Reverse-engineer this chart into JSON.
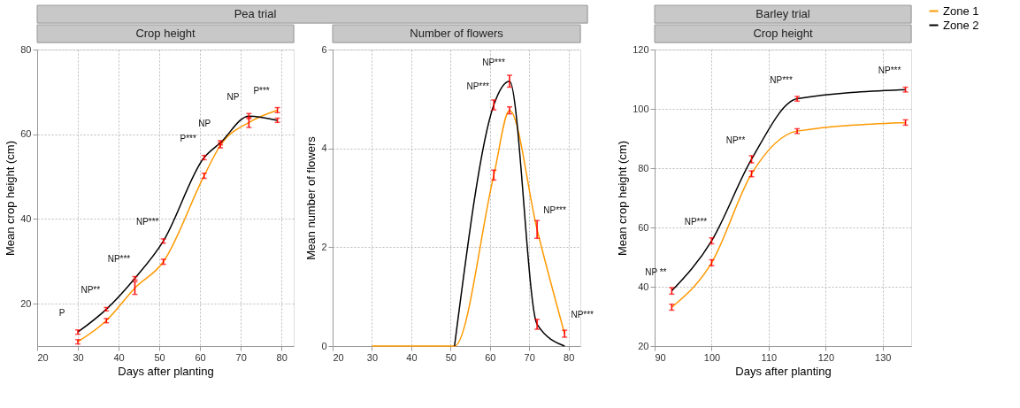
{
  "chart_data": [
    {
      "type": "line",
      "title": "Pea trial",
      "subtitle": "Crop height",
      "xlabel": "Days after planting",
      "ylabel": "Mean crop height (cm)",
      "xlim": [
        20,
        83
      ],
      "ylim": [
        10,
        80
      ],
      "xticks": [
        20,
        30,
        40,
        50,
        60,
        70,
        80
      ],
      "yticks": [
        20,
        40,
        60,
        80
      ],
      "grid": true,
      "line_style": "solid",
      "series": [
        {
          "color": "#ff9900",
          "x": [
            30,
            37,
            44,
            51,
            61,
            65,
            72,
            79
          ],
          "values": [
            11.0,
            16.0,
            23.7,
            29.9,
            50.2,
            57.4,
            62.8,
            65.7
          ],
          "errors": [
            0.5,
            0.5,
            1.5,
            0.6,
            0.6,
            0.6,
            1.2,
            0.6
          ]
        },
        {
          "color": "#000000",
          "x": [
            30,
            37,
            44,
            51,
            61,
            65,
            72,
            79
          ],
          "values": [
            13.3,
            18.7,
            26.0,
            34.8,
            54.5,
            58.0,
            64.3,
            63.3
          ],
          "errors": [
            0.5,
            0.4,
            0.4,
            0.5,
            0.5,
            0.5,
            0.6,
            0.5
          ]
        }
      ],
      "annotations": [
        "P",
        "NP**",
        "NP***",
        "NP***",
        "P***",
        "NP",
        "NP",
        "P***"
      ]
    },
    {
      "type": "line",
      "subtitle": "Number of flowers",
      "ylabel": "Mean number of flowers",
      "xlim": [
        20,
        83
      ],
      "ylim": [
        0,
        6
      ],
      "xticks": [
        20,
        30,
        40,
        50,
        60,
        70,
        80
      ],
      "yticks": [
        0,
        2,
        4,
        6
      ],
      "grid": true,
      "line_style": "solid",
      "series": [
        {
          "color": "#ff9900",
          "x": [
            30,
            37,
            44,
            51,
            61,
            65,
            72,
            79
          ],
          "values": [
            0,
            0,
            0,
            0,
            3.46,
            4.77,
            2.36,
            0.25
          ],
          "errors": [
            null,
            null,
            null,
            null,
            0.1,
            0.07,
            0.18,
            0.07
          ]
        },
        {
          "color": "#000000",
          "x": [
            51,
            61,
            65,
            72,
            79
          ],
          "values": [
            0,
            4.88,
            5.36,
            0.44,
            0
          ],
          "errors": [
            null,
            0.1,
            0.12,
            0.1,
            null
          ]
        }
      ],
      "annotations": [
        "NP***",
        "NP***",
        "NP***",
        "NP***"
      ]
    },
    {
      "type": "line",
      "title": "Barley trial",
      "subtitle": "Crop height",
      "xlabel": "Days after planting",
      "ylabel": "Mean crop height (cm)",
      "xlim": [
        90,
        135
      ],
      "ylim": [
        20,
        120
      ],
      "xticks": [
        90,
        100,
        110,
        120,
        130
      ],
      "yticks": [
        20,
        40,
        60,
        80,
        100,
        120
      ],
      "grid": true,
      "line_style": "solid",
      "legend": "right",
      "series": [
        {
          "name": "Zone 1",
          "color": "#ff9900",
          "x": [
            93,
            100,
            107,
            115,
            134
          ],
          "values": [
            33.1,
            48.1,
            78.1,
            92.5,
            95.4
          ],
          "errors": [
            1,
            1,
            1,
            0.8,
            0.9
          ]
        },
        {
          "name": "Zone 2",
          "color": "#000000",
          "x": [
            93,
            100,
            107,
            115,
            134
          ],
          "values": [
            38.6,
            55.5,
            83.0,
            103.4,
            106.5
          ],
          "errors": [
            1.1,
            1,
            1.2,
            0.8,
            0.8
          ]
        }
      ],
      "annotations": [
        "NP **",
        "NP***",
        "NP**",
        "NP***",
        "NP***"
      ]
    }
  ]
}
